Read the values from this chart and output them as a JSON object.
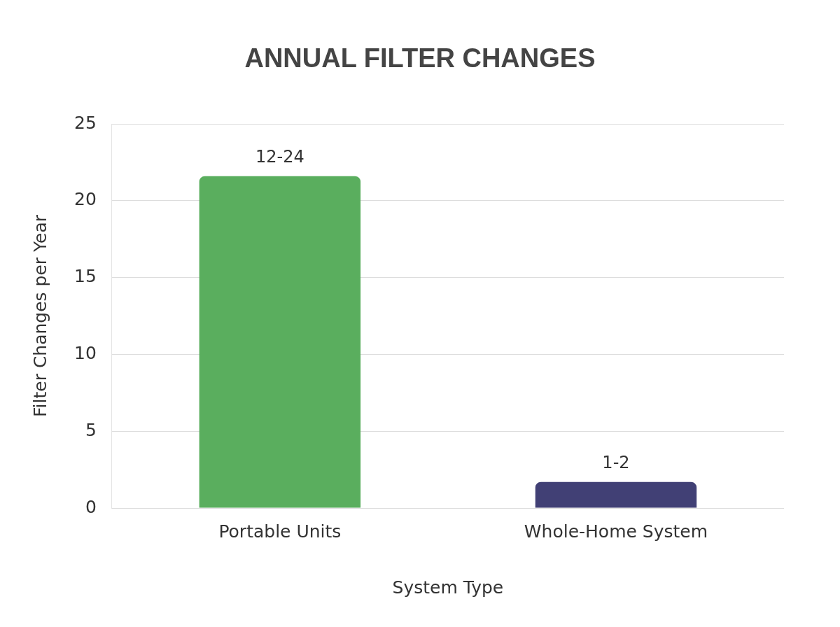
{
  "chart_data": {
    "type": "bar",
    "title": "ANNUAL FILTER CHANGES",
    "xlabel": "System Type",
    "ylabel": "Filter Changes per Year",
    "categories": [
      "Portable Units",
      "Whole-Home System"
    ],
    "values": [
      21.6,
      1.7
    ],
    "colors": [
      "#5aae5e",
      "#414075"
    ],
    "value_labels": [
      "12-24",
      "1-2"
    ],
    "ylim": [
      0,
      25
    ],
    "yticks": [
      0,
      5,
      10,
      15,
      20,
      25
    ],
    "grid": "y",
    "legend": false
  }
}
